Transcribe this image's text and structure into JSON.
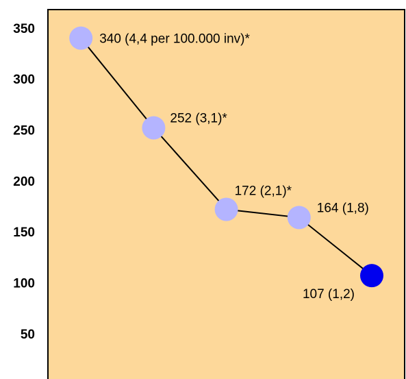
{
  "chart_data": {
    "type": "line",
    "title": "",
    "xlabel": "",
    "ylabel": "",
    "ylim": [
      0,
      355
    ],
    "yticks": [
      50,
      100,
      150,
      200,
      250,
      300,
      350
    ],
    "grid": false,
    "colors": {
      "plot_background": "#FDD89A",
      "frame": "#000000",
      "line": "#000000",
      "point": "#B4B4FF",
      "highlight_point": "#0000EE"
    },
    "points": [
      {
        "x": 1,
        "y": 340,
        "label": "340 (4,4 per 100.000 inv)*",
        "highlight": false
      },
      {
        "x": 2,
        "y": 252,
        "label": "252 (3,1)*",
        "highlight": false
      },
      {
        "x": 3,
        "y": 172,
        "label": "172 (2,1)*",
        "highlight": false
      },
      {
        "x": 4,
        "y": 164,
        "label": "164 (1,8)",
        "highlight": false
      },
      {
        "x": 5,
        "y": 107,
        "label": "107 (1,2)",
        "highlight": true
      }
    ]
  }
}
